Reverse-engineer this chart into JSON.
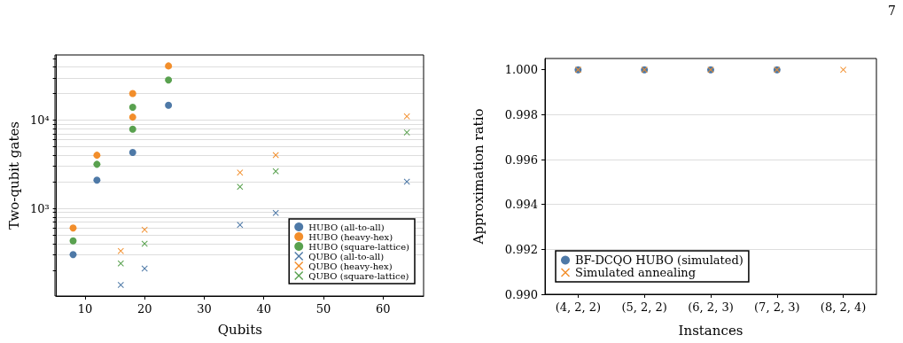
{
  "chart_data": [
    {
      "type": "scatter",
      "xlabel": "Qubits",
      "ylabel": "Two-qubit gates",
      "log": "y",
      "grid": "y",
      "legend": "bottom right",
      "xlim": [
        5.2,
        66.8
      ],
      "xticks": [
        10,
        20,
        30,
        40,
        50,
        60
      ],
      "ylim": [
        102,
        54600
      ],
      "yticks": [
        {
          "value": 200,
          "label": null
        },
        {
          "value": 300,
          "label": null
        },
        {
          "value": 400,
          "label": null
        },
        {
          "value": 500,
          "label": null
        },
        {
          "value": 600,
          "label": null
        },
        {
          "value": 700,
          "label": null
        },
        {
          "value": 800,
          "label": null
        },
        {
          "value": 900,
          "label": null
        },
        {
          "value": 1000,
          "label": "10³"
        },
        {
          "value": 2000,
          "label": null
        },
        {
          "value": 3000,
          "label": null
        },
        {
          "value": 4000,
          "label": null
        },
        {
          "value": 5000,
          "label": null
        },
        {
          "value": 6000,
          "label": null
        },
        {
          "value": 7000,
          "label": null
        },
        {
          "value": 8000,
          "label": null
        },
        {
          "value": 9000,
          "label": null
        },
        {
          "value": 10000,
          "label": "10⁴"
        },
        {
          "value": 20000,
          "label": null
        },
        {
          "value": 30000,
          "label": null
        },
        {
          "value": 40000,
          "label": null
        },
        {
          "value": 50000,
          "label": null
        }
      ],
      "series": [
        {
          "name": "HUBO (all-to-all)",
          "color": "#4e79a7",
          "marker": "circle",
          "x": [
            8,
            12,
            18,
            24
          ],
          "values": [
            300,
            2090,
            4300,
            14700
          ]
        },
        {
          "name": "HUBO (heavy-hex)",
          "color": "#f28e2b",
          "marker": "circle",
          "x": [
            8,
            12,
            18,
            18,
            24
          ],
          "values": [
            600,
            4000,
            10800,
            20000,
            41000
          ]
        },
        {
          "name": "HUBO (square-lattice)",
          "color": "#59a14f",
          "marker": "circle",
          "x": [
            8,
            12,
            18,
            18,
            24
          ],
          "values": [
            430,
            3160,
            7900,
            14000,
            28400
          ]
        },
        {
          "name": "QUBO (all-to-all)",
          "color": "#4e79a7",
          "marker": "cross",
          "x": [
            16,
            20,
            36,
            42,
            64
          ],
          "values": [
            136,
            209,
            650,
            890,
            2010
          ]
        },
        {
          "name": "QUBO (heavy-hex)",
          "color": "#f28e2b",
          "marker": "cross",
          "x": [
            16,
            20,
            36,
            42,
            64
          ],
          "values": [
            330,
            575,
            2550,
            4010,
            11000
          ]
        },
        {
          "name": "QUBO (square-lattice)",
          "color": "#59a14f",
          "marker": "cross",
          "x": [
            16,
            20,
            36,
            42,
            64
          ],
          "values": [
            238,
            398,
            1760,
            2630,
            7250
          ]
        }
      ]
    },
    {
      "type": "scatter",
      "xlabel": "Instances",
      "ylabel": "Approximation ratio",
      "grid": "y",
      "legend": "bottom left",
      "annotations": [
        "7"
      ],
      "categories": [
        "(4, 2, 2)",
        "(5, 2, 2)",
        "(6, 2, 3)",
        "(7, 2, 3)",
        "(8, 2, 4)"
      ],
      "ylim": [
        0.99,
        1.0005
      ],
      "yticks": [
        {
          "value": 0.99,
          "label": "0.990"
        },
        {
          "value": 0.992,
          "label": "0.992"
        },
        {
          "value": 0.994,
          "label": "0.994"
        },
        {
          "value": 0.996,
          "label": "0.996"
        },
        {
          "value": 0.998,
          "label": "0.998"
        },
        {
          "value": 1,
          "label": "1.000"
        }
      ],
      "series": [
        {
          "name": "BF-DCQO HUBO (simulated)",
          "color": "#4e79a7",
          "marker": "circle",
          "values": [
            1,
            1,
            1,
            1,
            null
          ]
        },
        {
          "name": "Simulated annealing",
          "color": "#f28e2b",
          "marker": "cross",
          "values": [
            1,
            1,
            1,
            1,
            1
          ]
        }
      ]
    }
  ]
}
